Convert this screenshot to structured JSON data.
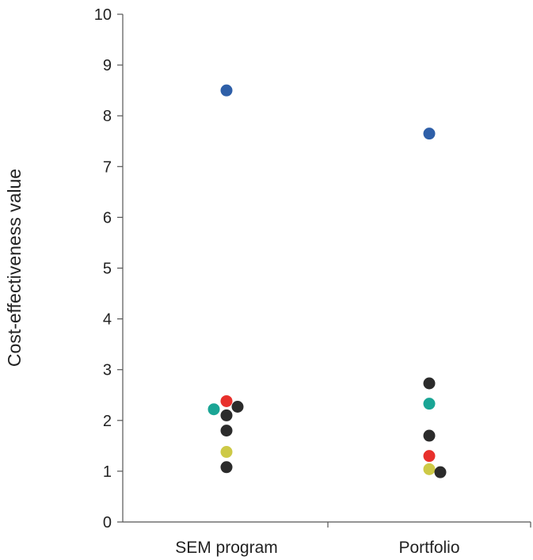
{
  "chart_data": {
    "type": "scatter",
    "title": "",
    "xlabel": "",
    "ylabel": "Cost-effectiveness value",
    "ylim": [
      0,
      10
    ],
    "yticks": [
      0,
      1,
      2,
      3,
      4,
      5,
      6,
      7,
      8,
      9,
      10
    ],
    "categories": [
      "SEM program",
      "Portfolio"
    ],
    "grid": false,
    "legend": "none",
    "points": [
      {
        "category": "SEM program",
        "y": 8.5,
        "color": "#2e5fa8"
      },
      {
        "category": "SEM program",
        "y": 2.38,
        "color": "#e8302c"
      },
      {
        "category": "SEM program",
        "y": 2.27,
        "color": "#2b2b2b"
      },
      {
        "category": "SEM program",
        "y": 2.22,
        "color": "#1aa595"
      },
      {
        "category": "SEM program",
        "y": 2.1,
        "color": "#2b2b2b"
      },
      {
        "category": "SEM program",
        "y": 1.8,
        "color": "#2b2b2b"
      },
      {
        "category": "SEM program",
        "y": 1.38,
        "color": "#cdc946"
      },
      {
        "category": "SEM program",
        "y": 1.08,
        "color": "#2b2b2b"
      },
      {
        "category": "Portfolio",
        "y": 7.65,
        "color": "#2e5fa8"
      },
      {
        "category": "Portfolio",
        "y": 2.73,
        "color": "#2b2b2b"
      },
      {
        "category": "Portfolio",
        "y": 2.33,
        "color": "#1aa595"
      },
      {
        "category": "Portfolio",
        "y": 1.7,
        "color": "#2b2b2b"
      },
      {
        "category": "Portfolio",
        "y": 1.3,
        "color": "#e8302c"
      },
      {
        "category": "Portfolio",
        "y": 1.04,
        "color": "#cdc946"
      },
      {
        "category": "Portfolio",
        "y": 0.98,
        "color": "#2b2b2b"
      }
    ]
  }
}
